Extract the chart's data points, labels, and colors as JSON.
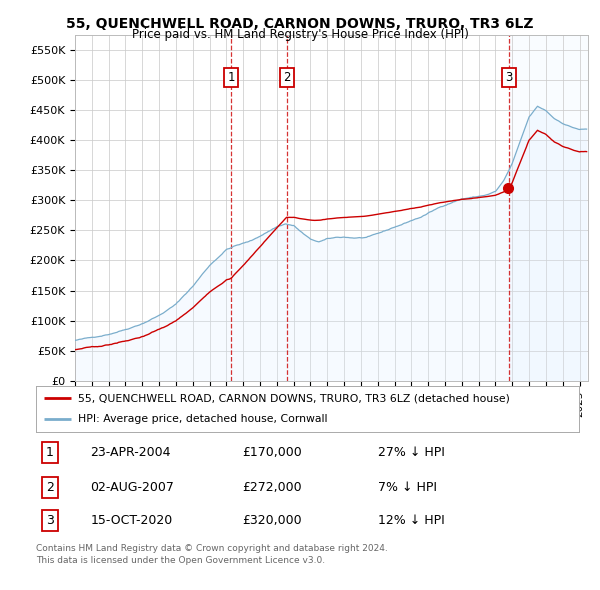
{
  "title": "55, QUENCHWELL ROAD, CARNON DOWNS, TRURO, TR3 6LZ",
  "subtitle": "Price paid vs. HM Land Registry's House Price Index (HPI)",
  "xlim_start": 1995.0,
  "xlim_end": 2025.5,
  "ylim_min": 0,
  "ylim_max": 575000,
  "yticks": [
    0,
    50000,
    100000,
    150000,
    200000,
    250000,
    300000,
    350000,
    400000,
    450000,
    500000,
    550000
  ],
  "ytick_labels": [
    "£0",
    "£50K",
    "£100K",
    "£150K",
    "£200K",
    "£250K",
    "£300K",
    "£350K",
    "£400K",
    "£450K",
    "£500K",
    "£550K"
  ],
  "legend_label_red": "55, QUENCHWELL ROAD, CARNON DOWNS, TRURO, TR3 6LZ (detached house)",
  "legend_label_blue": "HPI: Average price, detached house, Cornwall",
  "table_entries": [
    {
      "num": 1,
      "date": "23-APR-2004",
      "price": "£170,000",
      "hpi": "27% ↓ HPI"
    },
    {
      "num": 2,
      "date": "02-AUG-2007",
      "price": "£272,000",
      "hpi": "7% ↓ HPI"
    },
    {
      "num": 3,
      "date": "15-OCT-2020",
      "price": "£320,000",
      "hpi": "12% ↓ HPI"
    }
  ],
  "footnote1": "Contains HM Land Registry data © Crown copyright and database right 2024.",
  "footnote2": "This data is licensed under the Open Government Licence v3.0.",
  "sale_year_1": 2004.29,
  "sale_year_2": 2007.58,
  "sale_year_3": 2020.79,
  "sale_price_1": 170000,
  "sale_price_2": 272000,
  "sale_price_3": 320000,
  "hpi_base_years": [
    1995,
    1996,
    1997,
    1998,
    1999,
    2000,
    2001,
    2002,
    2003,
    2004,
    2004.5,
    2005,
    2005.5,
    2006,
    2006.5,
    2007,
    2007.5,
    2008,
    2008.5,
    2009,
    2009.5,
    2010,
    2010.5,
    2011,
    2011.5,
    2012,
    2012.5,
    2013,
    2013.5,
    2014,
    2014.5,
    2015,
    2015.5,
    2016,
    2016.5,
    2017,
    2017.5,
    2018,
    2018.5,
    2019,
    2019.5,
    2020,
    2020.5,
    2021,
    2021.5,
    2022,
    2022.5,
    2023,
    2023.5,
    2024,
    2024.5,
    2025
  ],
  "hpi_base_vals": [
    67000,
    71000,
    78000,
    87000,
    98000,
    112000,
    130000,
    160000,
    195000,
    222000,
    228000,
    232000,
    236000,
    244000,
    252000,
    260000,
    265000,
    262000,
    250000,
    238000,
    234000,
    238000,
    240000,
    241000,
    240000,
    240000,
    241000,
    245000,
    250000,
    256000,
    261000,
    267000,
    272000,
    279000,
    286000,
    293000,
    299000,
    304000,
    306000,
    308000,
    311000,
    316000,
    334000,
    362000,
    400000,
    438000,
    455000,
    448000,
    435000,
    428000,
    422000,
    418000
  ],
  "red_color": "#cc0000",
  "blue_color": "#7aadcc",
  "blue_fill": "#ddeeff",
  "grid_color": "#cccccc",
  "background_color": "#ffffff"
}
